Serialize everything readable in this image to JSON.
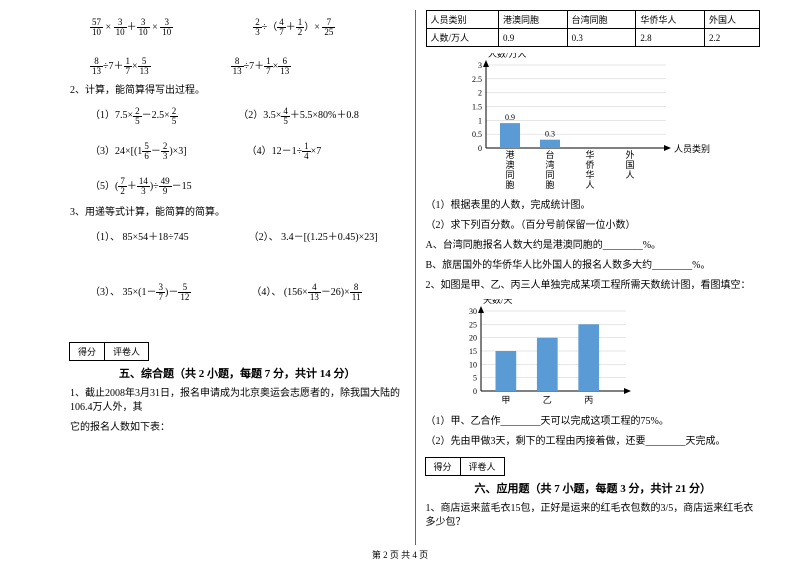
{
  "left": {
    "expr1a": {
      "a": "57",
      "b": "10",
      "c": "3",
      "d": "10",
      "e": "3",
      "f": "10",
      "g": "3",
      "h": "10"
    },
    "expr1b": {
      "a": "2",
      "b": "3",
      "c": "4",
      "d": "7",
      "e": "1",
      "f": "2",
      "g": "7",
      "h": "25"
    },
    "expr2a": {
      "a": "8",
      "b": "13",
      "c": "1",
      "d": "7",
      "e": "5",
      "f": "13"
    },
    "expr2b": {
      "a": "8",
      "b": "13",
      "c": "1",
      "d": "7",
      "e": "6",
      "f": "13"
    },
    "q2": "2、计算，能简算得写出过程。",
    "q2_1": {
      "pre": "（1）7.5×",
      "a": "2",
      "b": "5",
      "mid": "－2.5×",
      "c": "2",
      "d": "5"
    },
    "q2_2": {
      "pre": "（2）",
      "mid1": "3.5×",
      "a": "4",
      "b": "5",
      "mid2": "＋5.5×80%＋0.8"
    },
    "q2_3": {
      "pre": "（3）",
      "mid": "24×",
      "a": "5",
      "b": "6",
      "c": "2",
      "d": "3"
    },
    "q2_4": {
      "pre": "（4）12－1÷",
      "a": "1",
      "b": "4",
      "post": "×7"
    },
    "q2_5": {
      "pre": "（5）",
      "a": "7",
      "b": "2",
      "c": "14",
      "d": "3",
      "e": "49",
      "f": "9",
      "post": "－15"
    },
    "q3": "3、用递等式计算，能简算的简算。",
    "q3_1": "（1）、 85×54＋18÷745",
    "q3_2": "（2）、 3.4－[(1.25＋0.45)×23]",
    "q3_3": {
      "pre": "（3）、  35×(1－",
      "a": "3",
      "b": "7",
      "mid": ")－",
      "c": "5",
      "d": "12"
    },
    "q3_4": {
      "pre": "（4）、 (156×",
      "a": "4",
      "b": "13",
      "mid": "－26)×",
      "c": "8",
      "d": "11"
    },
    "score_labels": [
      "得分",
      "评卷人"
    ],
    "sec5": "五、综合题（共 2 小题，每题 7 分，共计 14 分）",
    "q5_1a": "1、截止2008年3月31日，报名申请成为北京奥运会志愿者的，除我国大陆的106.4万人外，其",
    "q5_1b": "它的报名人数如下表："
  },
  "right": {
    "table": {
      "headers": [
        "人员类别",
        "港澳同胞",
        "台湾同胞",
        "华侨华人",
        "外国人"
      ],
      "row": [
        "人数/万人",
        "0.9",
        "0.3",
        "2.8",
        "2.2"
      ]
    },
    "chart1": {
      "ylabel": "人数/万人",
      "xlabel": "人员类别",
      "yticks": [
        "0",
        "0.5",
        "1",
        "1.5",
        "2",
        "2.5",
        "3"
      ],
      "categories": [
        "港澳同胞",
        "台湾同胞",
        "华侨华人",
        "外国人"
      ],
      "values": [
        0.9,
        0.3,
        null,
        null
      ],
      "value_labels": [
        "0.9",
        "0.3",
        "",
        ""
      ],
      "ylim": [
        0,
        3
      ],
      "bar_color": "#5b9bd5",
      "grid_color": "#cccccc"
    },
    "q1_1": "（1）根据表里的人数，完成统计图。",
    "q1_2": "（2）求下列百分数。（百分号前保留一位小数）",
    "q1_2a": "A、台湾同胞报名人数大约是港澳同胞的________%。",
    "q1_2b": "B、旅居国外的华侨华人比外国人的报名人数多大约________%。",
    "q2": "2、如图是甲、乙、丙三人单独完成某项工程所需天数统计图，看图填空：",
    "chart2": {
      "ylabel": "天数/天",
      "yticks": [
        "0",
        "5",
        "10",
        "15",
        "20",
        "25",
        "30"
      ],
      "categories": [
        "甲",
        "乙",
        "丙"
      ],
      "values": [
        15,
        20,
        25
      ],
      "ylim": [
        0,
        30
      ],
      "bar_color": "#5b9bd5",
      "grid_color": "#cccccc"
    },
    "q2_1": "（1）甲、乙合作________天可以完成这项工程的75%。",
    "q2_2": "（2）先由甲做3天，剩下的工程由丙接着做，还要________天完成。",
    "score_labels": [
      "得分",
      "评卷人"
    ],
    "sec6": "六、应用题（共 7 小题，每题 3 分，共计 21 分）",
    "q6_1": "1、商店运来蓝毛衣15包，正好是运来的红毛衣包数的3/5，商店运来红毛衣多少包？"
  },
  "footer": "第 2 页 共 4 页"
}
